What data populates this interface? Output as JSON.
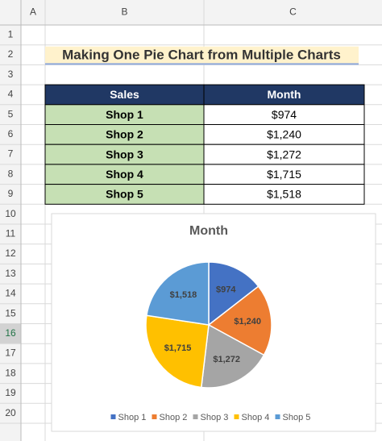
{
  "sheet": {
    "columns": [
      "A",
      "B",
      "C"
    ],
    "rows": [
      "1",
      "2",
      "3",
      "4",
      "5",
      "6",
      "7",
      "8",
      "9",
      "10",
      "11",
      "12",
      "13",
      "14",
      "15",
      "16",
      "17",
      "18",
      "19",
      "20"
    ]
  },
  "title": "Making One Pie Chart from Multiple Charts",
  "table": {
    "header": [
      "Sales",
      "Month"
    ],
    "rows": [
      [
        "Shop 1",
        "$974"
      ],
      [
        "Shop 2",
        "$1,240"
      ],
      [
        "Shop 3",
        "$1,272"
      ],
      [
        "Shop 4",
        "$1,715"
      ],
      [
        "Shop 5",
        "$1,518"
      ]
    ]
  },
  "chart_data": {
    "type": "pie",
    "title": "Month",
    "categories": [
      "Shop 1",
      "Shop 2",
      "Shop 3",
      "Shop 4",
      "Shop 5"
    ],
    "values": [
      974,
      1240,
      1272,
      1715,
      1518
    ],
    "value_labels": [
      "$974",
      "$1,240",
      "$1,272",
      "$1,715",
      "$1,518"
    ],
    "colors": [
      "#4472c4",
      "#ed7d31",
      "#a5a5a5",
      "#ffc000",
      "#5b9bd5"
    ],
    "legend": "bottom"
  }
}
